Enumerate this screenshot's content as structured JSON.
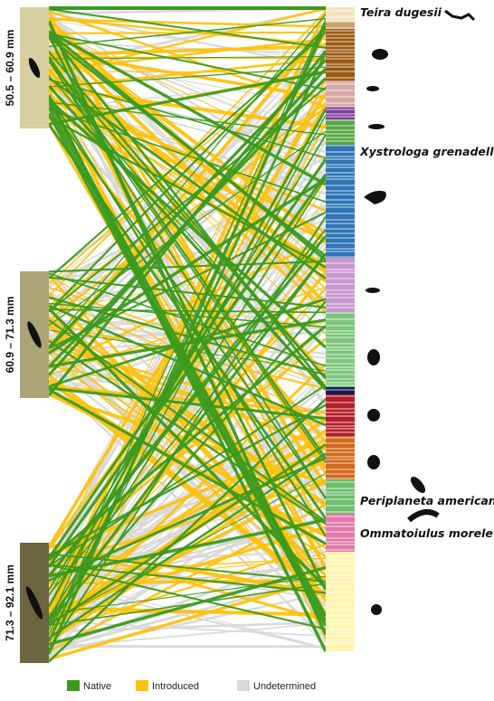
{
  "left_nodes": [
    {
      "label": "50.5 – 60.9 mm",
      "color": "#d6cfa0"
    },
    {
      "label": "60.9 – 71.3 mm",
      "color": "#aba477"
    },
    {
      "label": "71.3 – 92.1 mm",
      "color": "#6b6540"
    }
  ],
  "species_labels": [
    "Teira dugesii",
    "Xystrologa grenadella",
    "Periplaneta americana",
    "Ommatoiulus moreleti"
  ],
  "legend": [
    {
      "label": "Native",
      "color": "#3b9a1e"
    },
    {
      "label": "Introduced",
      "color": "#ffc20e"
    },
    {
      "label": "Undetermined",
      "color": "#d9d9d9"
    }
  ]
}
